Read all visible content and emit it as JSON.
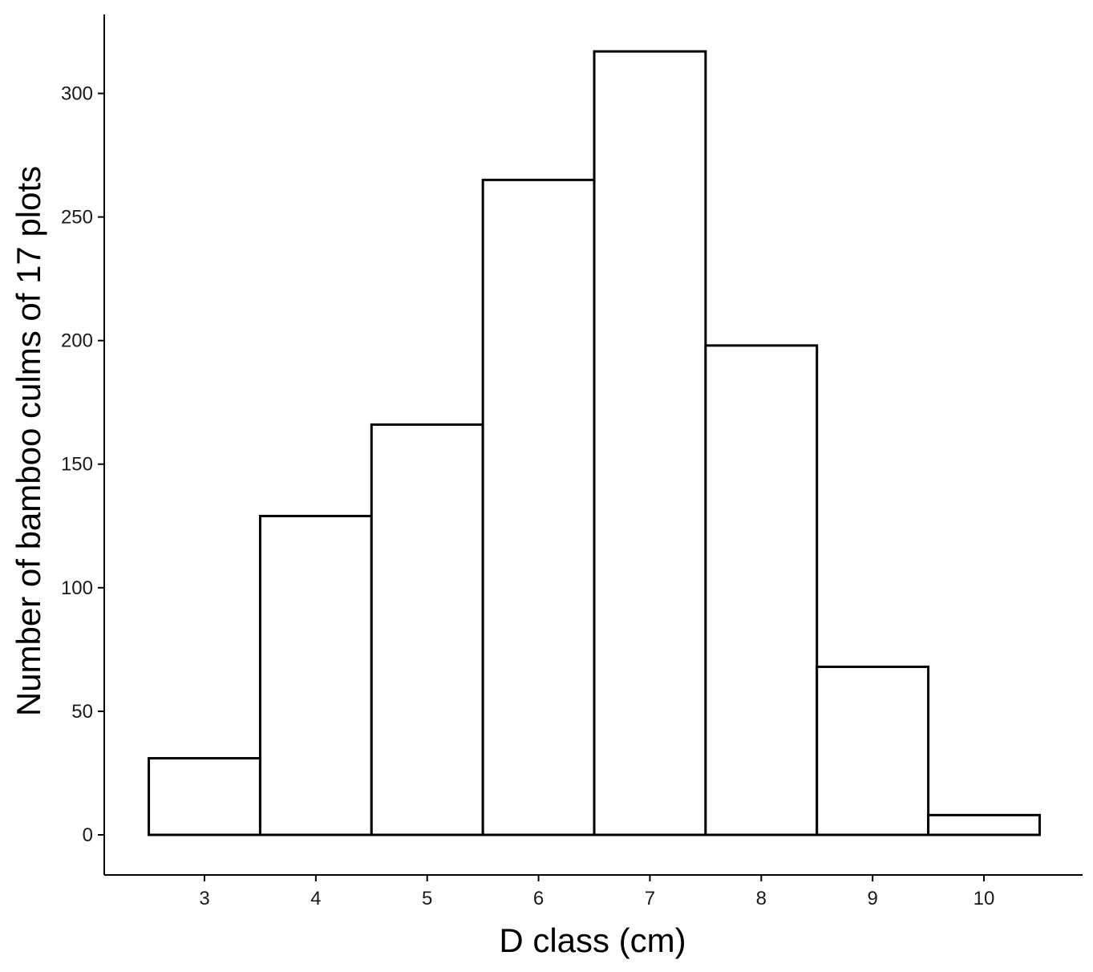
{
  "chart_data": {
    "type": "bar",
    "histogram": true,
    "bin_width": 1,
    "categories": [
      "3",
      "4",
      "5",
      "6",
      "7",
      "8",
      "9",
      "10"
    ],
    "x": [
      3,
      4,
      5,
      6,
      7,
      8,
      9,
      10
    ],
    "values": [
      31,
      129,
      166,
      265,
      317,
      198,
      68,
      8
    ],
    "xlabel": "D class (cm)",
    "ylabel": "Number of bamboo culms of 17 plots",
    "xlim": [
      2,
      11
    ],
    "ylim": [
      -15,
      330
    ],
    "y_ticks": [
      0,
      50,
      100,
      150,
      200,
      250,
      300
    ],
    "x_ticks": [
      3,
      4,
      5,
      6,
      7,
      8,
      9,
      10
    ],
    "grid": false,
    "bar_fill": "#ffffff",
    "bar_stroke": "#000000"
  }
}
